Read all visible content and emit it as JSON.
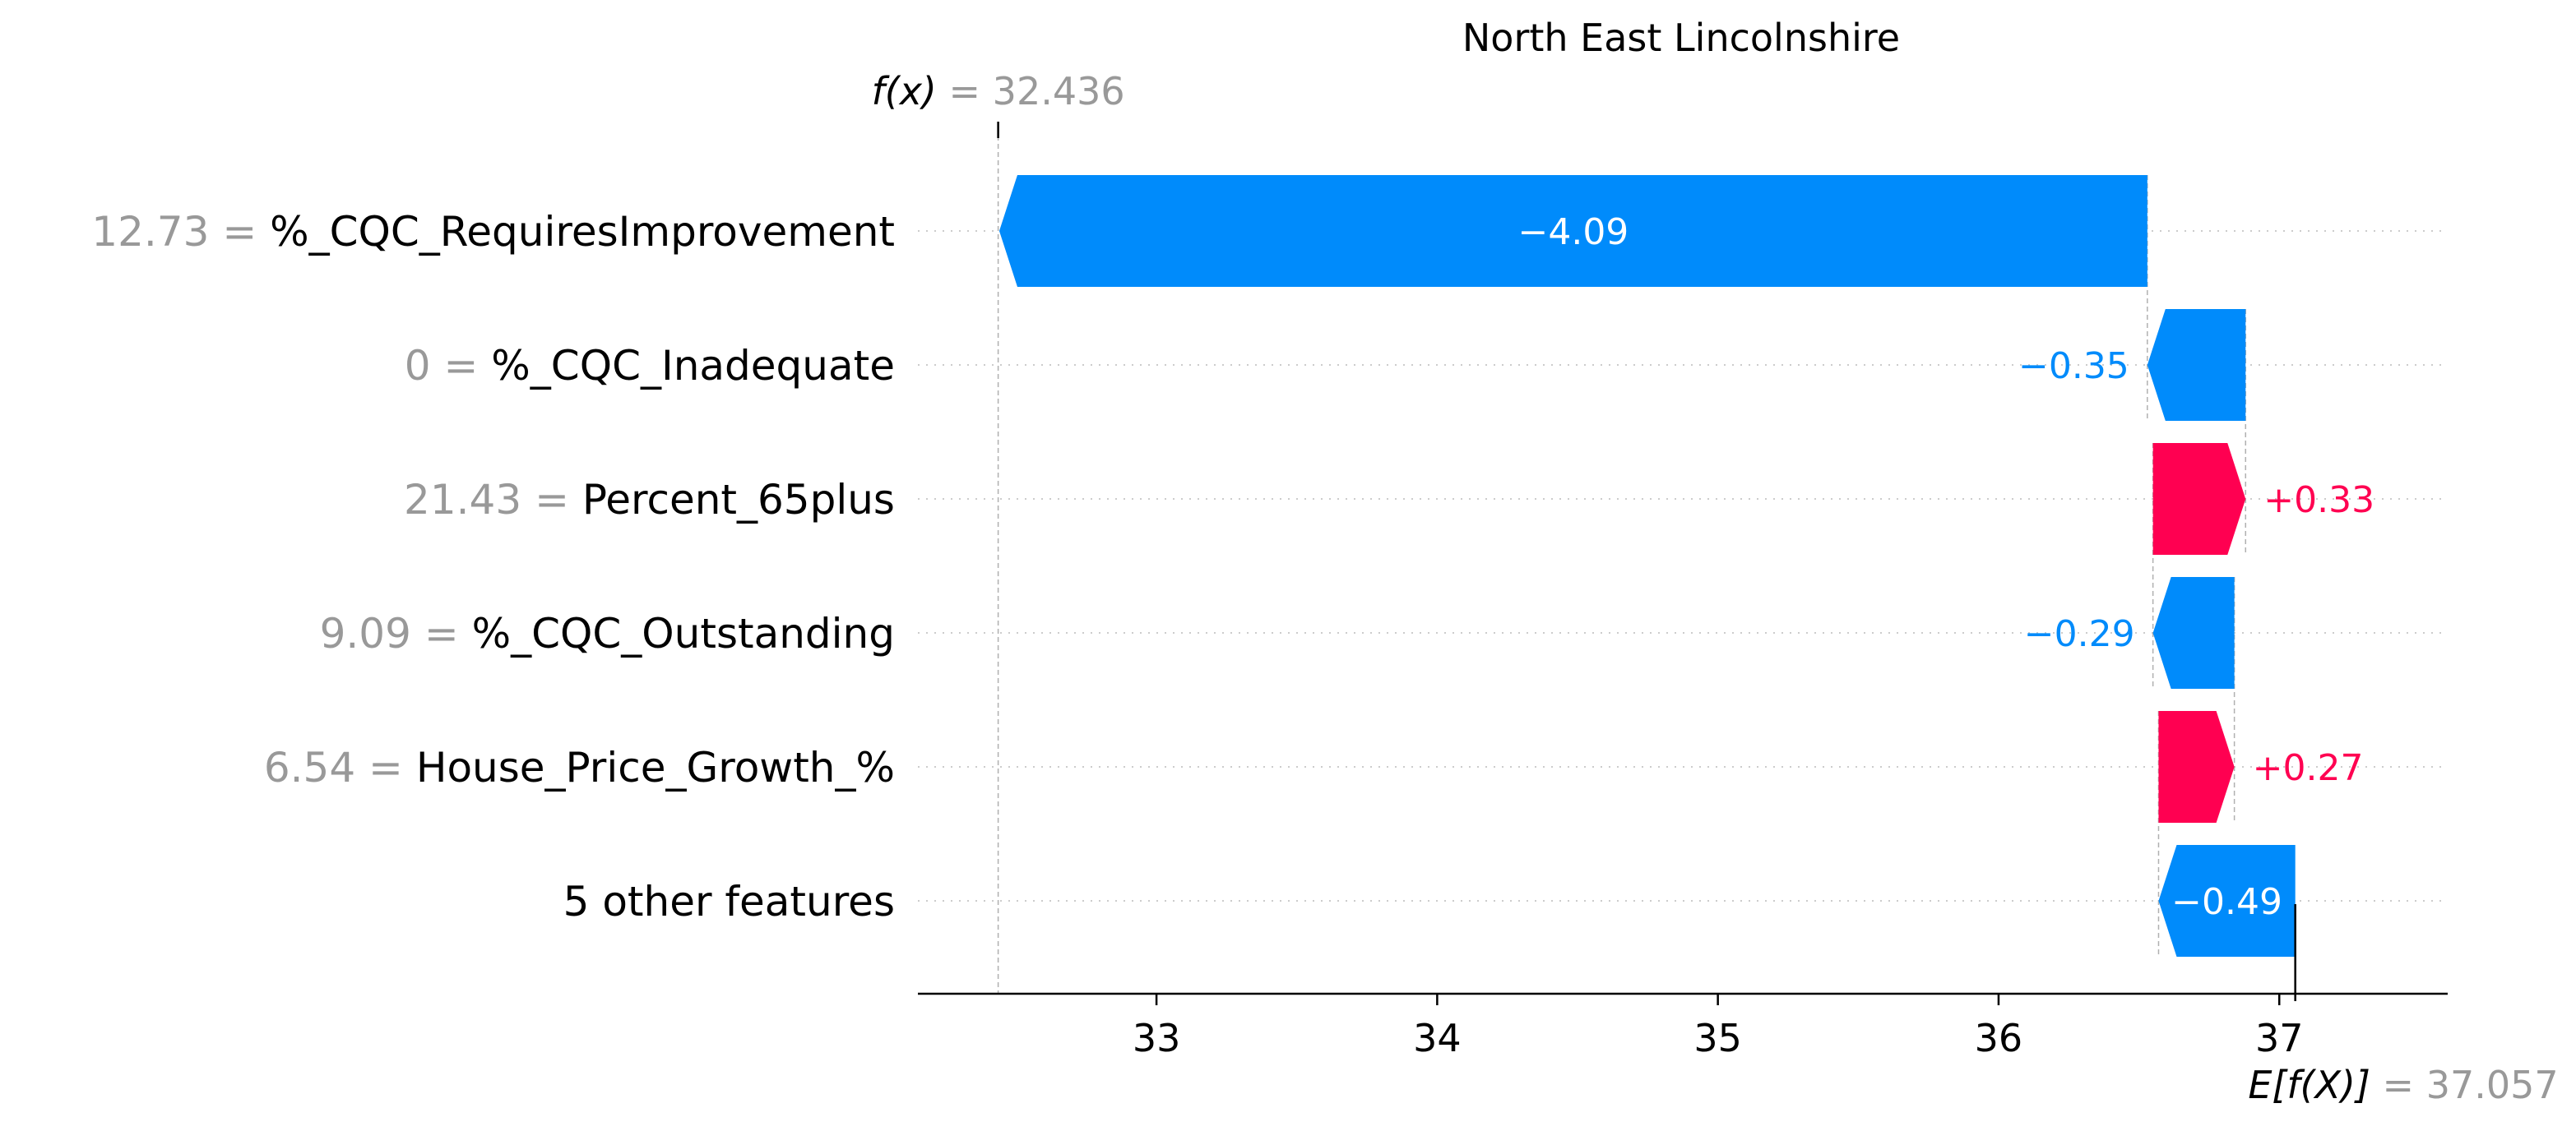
{
  "chart_data": {
    "type": "waterfall",
    "title": "North East Lincolnshire",
    "fx": {
      "label_italic": "f(x)",
      "label_eq": " = ",
      "value_text": "32.436",
      "value": 32.436
    },
    "efx": {
      "label_italic": "E[f(X)]",
      "label_eq": " = ",
      "value_text": "37.057",
      "value": 37.057
    },
    "xlim": [
      32.15,
      37.6
    ],
    "x_ticks": [
      33,
      34,
      35,
      36,
      37
    ],
    "x_tick_labels": [
      "33",
      "34",
      "35",
      "36",
      "37"
    ],
    "features": [
      {
        "value_text": "12.73",
        "eq": " = ",
        "name": "%_CQC_RequiresImprovement",
        "contribution": -4.09,
        "label": "−4.09"
      },
      {
        "value_text": "0",
        "eq": " = ",
        "name": "%_CQC_Inadequate",
        "contribution": -0.35,
        "label": "−0.35"
      },
      {
        "value_text": "21.43",
        "eq": " = ",
        "name": "Percent_65plus",
        "contribution": 0.33,
        "label": "+0.33"
      },
      {
        "value_text": "9.09",
        "eq": " = ",
        "name": "%_CQC_Outstanding",
        "contribution": -0.29,
        "label": "−0.29"
      },
      {
        "value_text": "6.54",
        "eq": " = ",
        "name": "House_Price_Growth_%",
        "contribution": 0.27,
        "label": "+0.27"
      },
      {
        "value_text": "",
        "eq": "",
        "name": "5 other features",
        "contribution": -0.487,
        "label": "−0.49"
      }
    ],
    "colors": {
      "negative": "#008bfb",
      "positive": "#ff0051",
      "muted_text": "#999999",
      "text": "#000000",
      "grid": "#cccccc"
    }
  }
}
